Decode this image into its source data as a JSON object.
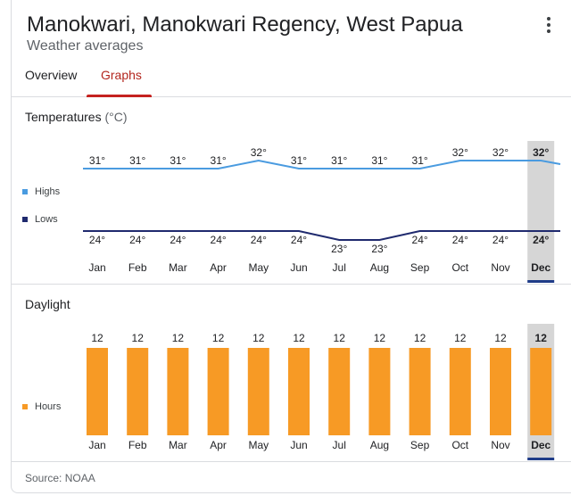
{
  "header": {
    "title": "Manokwari, Manokwari Regency, West Papua",
    "subtitle": "Weather averages"
  },
  "tabs": [
    {
      "label": "Overview",
      "active": false
    },
    {
      "label": "Graphs",
      "active": true
    }
  ],
  "temperatures": {
    "title": "Temperatures",
    "unit": "(°C)",
    "legend": {
      "highs": "Highs",
      "lows": "Lows"
    }
  },
  "daylight": {
    "title": "Daylight",
    "legend": {
      "hours": "Hours"
    }
  },
  "source": "Source: NOAA",
  "colors": {
    "highs": "#4a9be0",
    "lows": "#1f2a6e",
    "daylight": "#f79a25",
    "accent": "#c5221f",
    "selected_band": "#d6d6d6"
  },
  "selected_month": "Dec",
  "chart_data": [
    {
      "type": "line",
      "title": "Temperatures",
      "categories": [
        "Jan",
        "Feb",
        "Mar",
        "Apr",
        "May",
        "Jun",
        "Jul",
        "Aug",
        "Sep",
        "Oct",
        "Nov",
        "Dec"
      ],
      "series": [
        {
          "name": "Highs",
          "values": [
            31,
            31,
            31,
            31,
            32,
            31,
            31,
            31,
            31,
            32,
            32,
            32
          ],
          "labels": [
            "31°",
            "31°",
            "31°",
            "31°",
            "32°",
            "31°",
            "31°",
            "31°",
            "31°",
            "32°",
            "32°",
            "32°"
          ]
        },
        {
          "name": "Lows",
          "values": [
            24,
            24,
            24,
            24,
            24,
            24,
            23,
            23,
            24,
            24,
            24,
            24
          ],
          "labels": [
            "24°",
            "24°",
            "24°",
            "24°",
            "24°",
            "24°",
            "23°",
            "23°",
            "24°",
            "24°",
            "24°",
            "24°"
          ]
        }
      ],
      "ylim": [
        23,
        32
      ]
    },
    {
      "type": "bar",
      "title": "Daylight",
      "categories": [
        "Jan",
        "Feb",
        "Mar",
        "Apr",
        "May",
        "Jun",
        "Jul",
        "Aug",
        "Sep",
        "Oct",
        "Nov",
        "Dec"
      ],
      "series": [
        {
          "name": "Hours",
          "values": [
            12,
            12,
            12,
            12,
            12,
            12,
            12,
            12,
            12,
            12,
            12,
            12
          ],
          "labels": [
            "12",
            "12",
            "12",
            "12",
            "12",
            "12",
            "12",
            "12",
            "12",
            "12",
            "12",
            "12"
          ]
        }
      ],
      "ylim": [
        0,
        12
      ]
    }
  ]
}
